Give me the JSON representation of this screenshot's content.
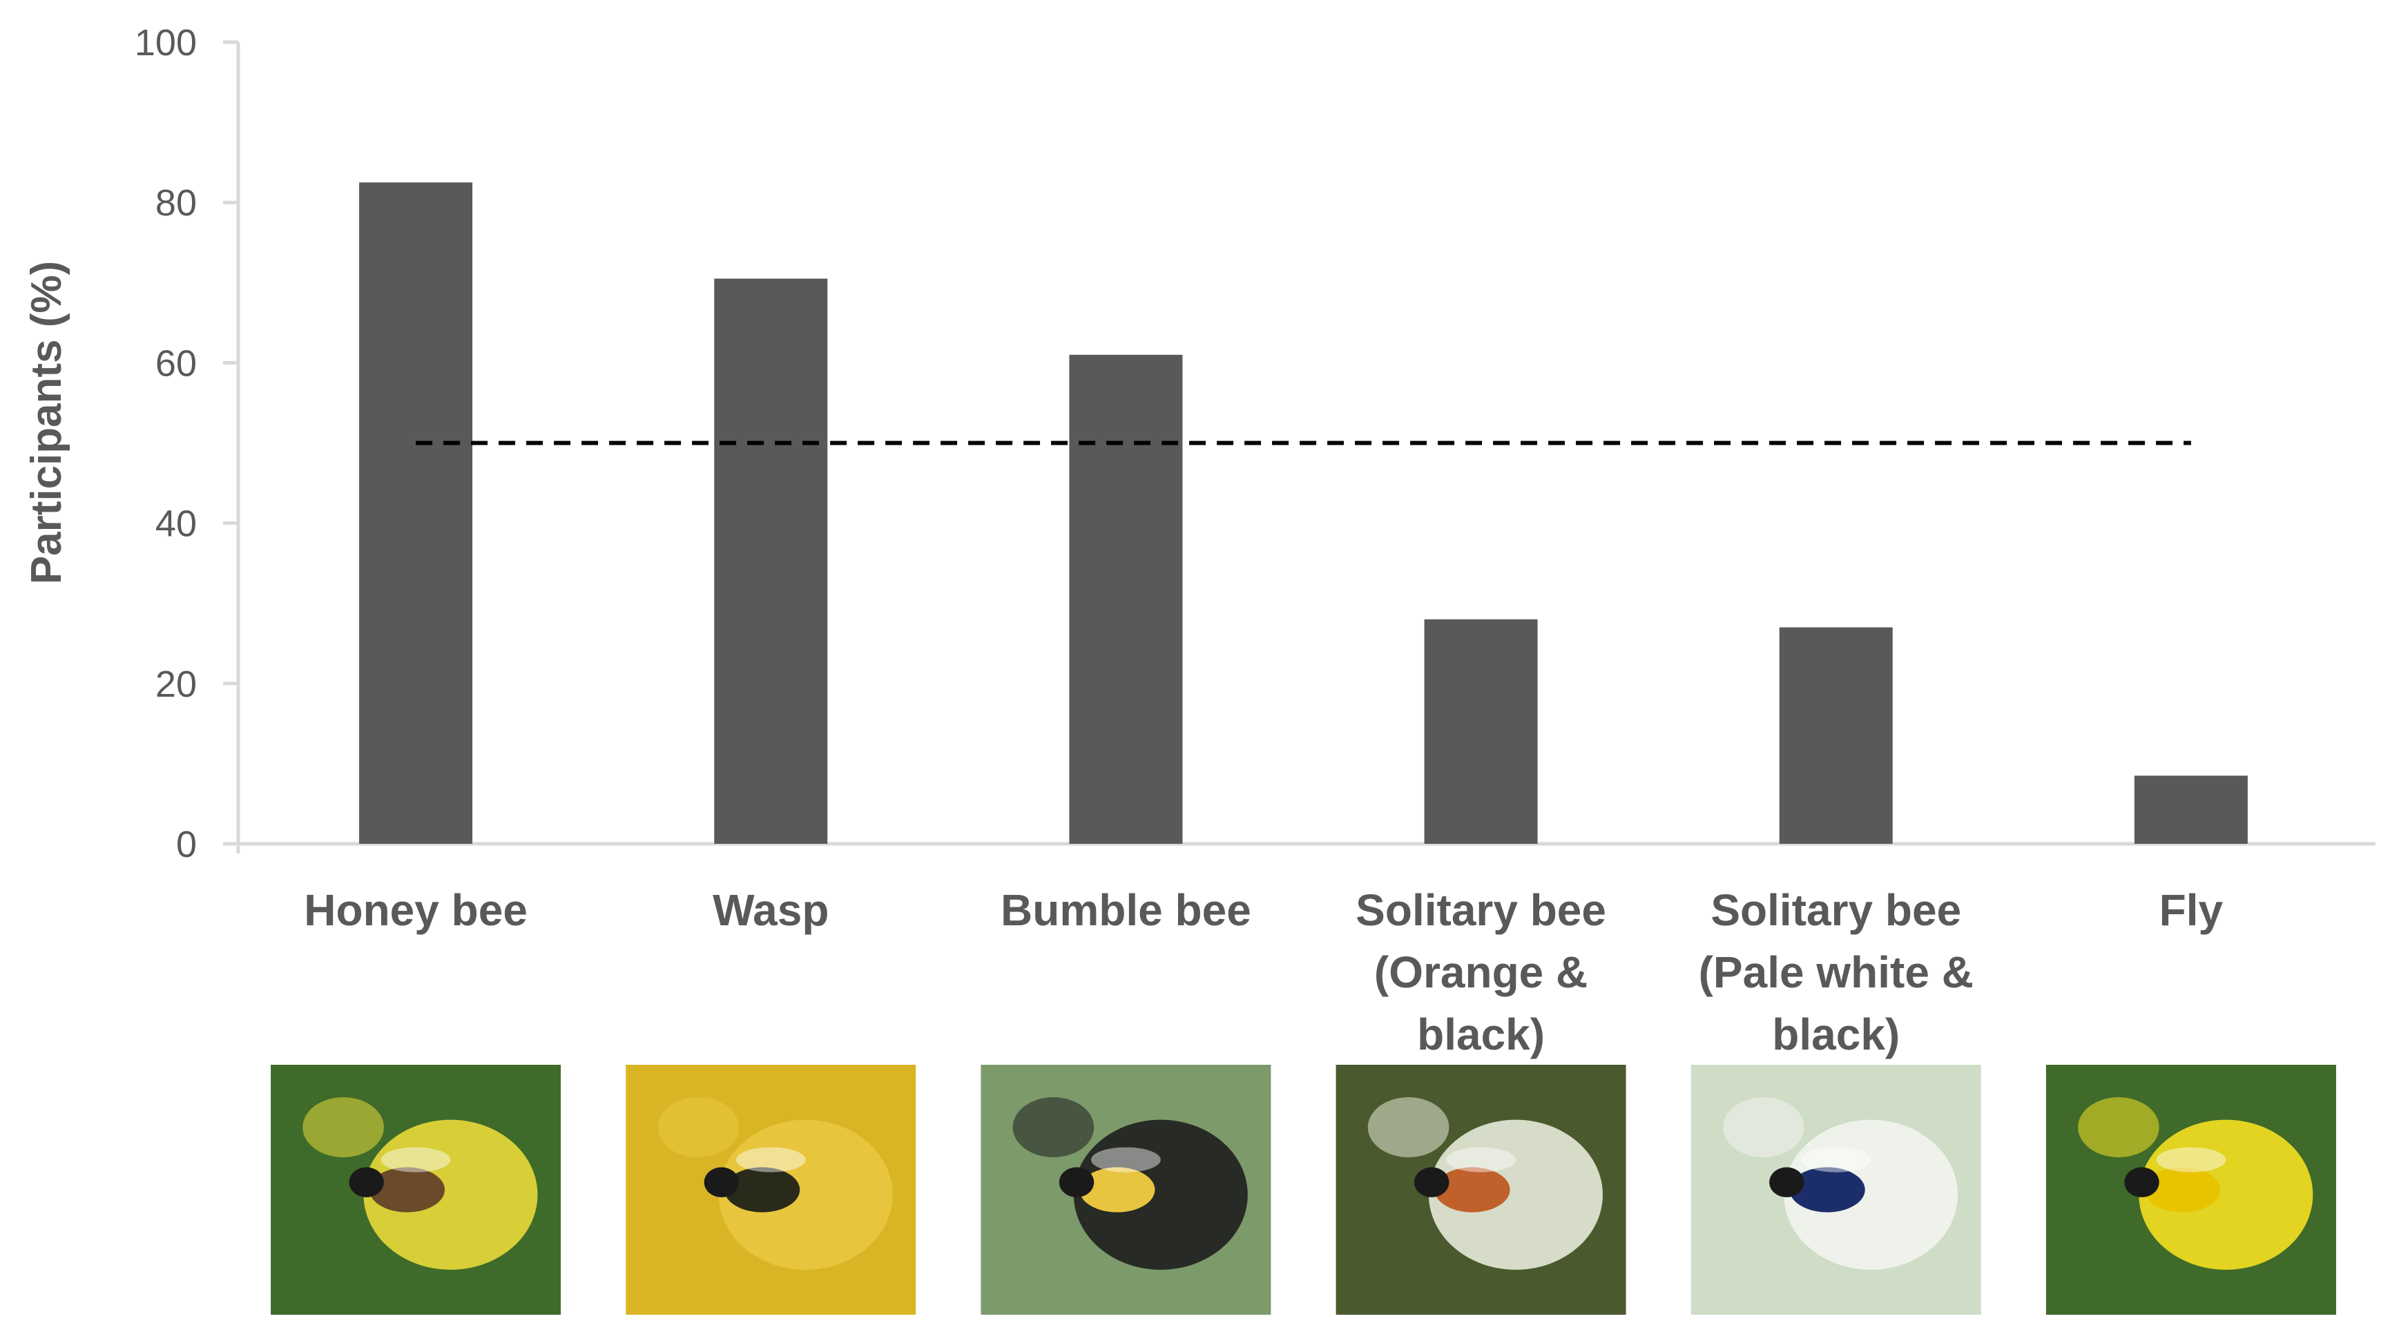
{
  "chart_data": {
    "type": "bar",
    "title": "",
    "xlabel": "",
    "ylabel": "Participants (%)",
    "ylim": [
      0,
      100
    ],
    "yticks": [
      0,
      20,
      40,
      60,
      80,
      100
    ],
    "categories": [
      [
        "Honey bee"
      ],
      [
        "Wasp"
      ],
      [
        "Bumble bee"
      ],
      [
        "Solitary bee",
        "(Orange &",
        "black)"
      ],
      [
        "Solitary bee",
        "(Pale white &",
        "black)"
      ],
      [
        "Fly"
      ]
    ],
    "values": [
      82.5,
      70.5,
      61,
      28,
      27,
      8.5
    ],
    "reference_line": {
      "value": 50,
      "style": "dashed",
      "color": "#000000"
    },
    "bar_color": "#595959",
    "axis_color": "#d9d9d9",
    "grid": false,
    "legend": "none",
    "category_images": [
      {
        "icon": "honey-bee-photo",
        "colors": [
          "#3f6b2a",
          "#e8d93a",
          "#6b4a2a"
        ]
      },
      {
        "icon": "wasp-photo",
        "colors": [
          "#d9b526",
          "#e8c840",
          "#2a2a1a"
        ]
      },
      {
        "icon": "bumble-bee-photo",
        "colors": [
          "#7d9a6a",
          "#1e1e1e",
          "#e8c540"
        ]
      },
      {
        "icon": "orange-solitary-bee-photo",
        "colors": [
          "#4a5a2e",
          "#e6ead8",
          "#c0602a"
        ]
      },
      {
        "icon": "pale-solitary-bee-photo",
        "colors": [
          "#cfdcc6",
          "#f2f4ee",
          "#1c2e6a"
        ]
      },
      {
        "icon": "fly-photo",
        "colors": [
          "#3f6a2a",
          "#f4e020",
          "#e8c400"
        ]
      }
    ]
  }
}
